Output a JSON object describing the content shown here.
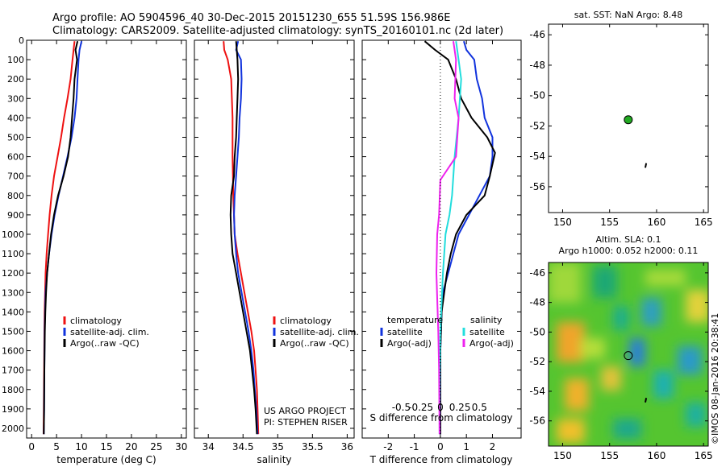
{
  "header": {
    "line1": "Argo profile: AO 5904596_40 30-Dec-2015 20151230_655 51.59S 156.986E",
    "line2": "Climatology: CARS2009. Satellite-adjusted climatology: synTS_20160101.nc (2d later)"
  },
  "colors": {
    "climatology": "#ee1111",
    "satellite": "#1133dd",
    "argo": "#000000",
    "satellite_sal": "#22dddd",
    "argo_sal": "#ee22ee",
    "marker": "#22aa22"
  },
  "chart_data": [
    {
      "type": "line",
      "panel": "temperature",
      "xlabel": "temperature (deg C)",
      "ylabel": "",
      "xlim": [
        -1,
        31
      ],
      "ylim": [
        2050,
        0
      ],
      "x_ticks": [
        0,
        5,
        10,
        15,
        20,
        25,
        30
      ],
      "y_ticks": [
        0,
        100,
        200,
        300,
        400,
        500,
        600,
        700,
        800,
        900,
        1000,
        1100,
        1200,
        1300,
        1400,
        1500,
        1600,
        1700,
        1800,
        1900,
        2000
      ],
      "legend": [
        "climatology",
        "satellite-adj. clim.",
        "Argo(..raw -QC)"
      ],
      "series": [
        {
          "name": "climatology",
          "color": "#ee1111",
          "points": [
            [
              8.6,
              5
            ],
            [
              8.2,
              100
            ],
            [
              7.8,
              200
            ],
            [
              7.2,
              300
            ],
            [
              6.5,
              400
            ],
            [
              5.9,
              500
            ],
            [
              5.2,
              600
            ],
            [
              4.5,
              700
            ],
            [
              4.0,
              800
            ],
            [
              3.6,
              900
            ],
            [
              3.3,
              1000
            ],
            [
              3.0,
              1100
            ],
            [
              2.8,
              1200
            ],
            [
              2.7,
              1300
            ],
            [
              2.6,
              1400
            ],
            [
              2.55,
              1500
            ],
            [
              2.5,
              1700
            ],
            [
              2.45,
              1900
            ],
            [
              2.4,
              2030
            ]
          ]
        },
        {
          "name": "satellite-adj. clim.",
          "color": "#1133dd",
          "points": [
            [
              10.0,
              5
            ],
            [
              9.6,
              50
            ],
            [
              9.4,
              100
            ],
            [
              9.2,
              200
            ],
            [
              9.0,
              300
            ],
            [
              8.6,
              400
            ],
            [
              8.0,
              500
            ],
            [
              7.2,
              600
            ],
            [
              6.3,
              700
            ],
            [
              5.4,
              800
            ],
            [
              4.6,
              900
            ],
            [
              4.0,
              1000
            ],
            [
              3.5,
              1100
            ],
            [
              3.1,
              1200
            ],
            [
              2.8,
              1300
            ],
            [
              2.7,
              1400
            ],
            [
              2.6,
              1500
            ],
            [
              2.55,
              1700
            ],
            [
              2.5,
              1900
            ],
            [
              2.45,
              2030
            ]
          ]
        },
        {
          "name": "Argo(..raw -QC)",
          "color": "#000000",
          "points": [
            [
              9.2,
              5
            ],
            [
              8.8,
              50
            ],
            [
              9.1,
              100
            ],
            [
              8.6,
              200
            ],
            [
              8.4,
              300
            ],
            [
              8.1,
              400
            ],
            [
              7.8,
              500
            ],
            [
              7.3,
              600
            ],
            [
              6.4,
              700
            ],
            [
              5.3,
              800
            ],
            [
              4.5,
              900
            ],
            [
              3.9,
              1000
            ],
            [
              3.5,
              1100
            ],
            [
              3.1,
              1200
            ],
            [
              2.9,
              1300
            ],
            [
              2.75,
              1400
            ],
            [
              2.65,
              1500
            ],
            [
              2.55,
              1700
            ],
            [
              2.5,
              1900
            ],
            [
              2.45,
              2030
            ]
          ]
        }
      ]
    },
    {
      "type": "line",
      "panel": "salinity",
      "xlabel": "salinity",
      "ylabel": "",
      "xlim": [
        33.8,
        36.1
      ],
      "ylim": [
        2050,
        0
      ],
      "x_ticks": [
        34,
        34.5,
        35,
        35.5,
        36
      ],
      "legend": [
        "climatology",
        "satellite-adj. clim.",
        "Argo(..raw -QC)"
      ],
      "annotation": [
        "US ARGO PROJECT",
        "PI: STEPHEN RISER"
      ],
      "series": [
        {
          "name": "climatology",
          "color": "#ee1111",
          "points": [
            [
              34.22,
              5
            ],
            [
              34.23,
              50
            ],
            [
              34.28,
              100
            ],
            [
              34.33,
              200
            ],
            [
              34.35,
              400
            ],
            [
              34.35,
              600
            ],
            [
              34.36,
              800
            ],
            [
              34.38,
              1000
            ],
            [
              34.42,
              1100
            ],
            [
              34.47,
              1200
            ],
            [
              34.52,
              1300
            ],
            [
              34.57,
              1400
            ],
            [
              34.62,
              1500
            ],
            [
              34.66,
              1600
            ],
            [
              34.68,
              1700
            ],
            [
              34.7,
              1800
            ],
            [
              34.71,
              1900
            ],
            [
              34.72,
              2030
            ]
          ]
        },
        {
          "name": "satellite-adj. clim.",
          "color": "#1133dd",
          "points": [
            [
              34.43,
              5
            ],
            [
              34.4,
              50
            ],
            [
              34.47,
              100
            ],
            [
              34.48,
              200
            ],
            [
              34.47,
              300
            ],
            [
              34.45,
              400
            ],
            [
              34.44,
              500
            ],
            [
              34.42,
              600
            ],
            [
              34.4,
              700
            ],
            [
              34.38,
              800
            ],
            [
              34.37,
              900
            ],
            [
              34.38,
              1000
            ],
            [
              34.4,
              1100
            ],
            [
              34.43,
              1200
            ],
            [
              34.48,
              1300
            ],
            [
              34.53,
              1400
            ],
            [
              34.58,
              1500
            ],
            [
              34.62,
              1600
            ],
            [
              34.65,
              1700
            ],
            [
              34.67,
              1800
            ],
            [
              34.69,
              1900
            ],
            [
              34.71,
              2030
            ]
          ]
        },
        {
          "name": "Argo(..raw -QC)",
          "color": "#000000",
          "points": [
            [
              34.4,
              5
            ],
            [
              34.42,
              100
            ],
            [
              34.43,
              200
            ],
            [
              34.42,
              300
            ],
            [
              34.41,
              400
            ],
            [
              34.4,
              500
            ],
            [
              34.38,
              600
            ],
            [
              34.37,
              700
            ],
            [
              34.33,
              800
            ],
            [
              34.32,
              900
            ],
            [
              34.33,
              1000
            ],
            [
              34.35,
              1100
            ],
            [
              34.4,
              1200
            ],
            [
              34.45,
              1300
            ],
            [
              34.5,
              1400
            ],
            [
              34.55,
              1500
            ],
            [
              34.6,
              1600
            ],
            [
              34.63,
              1700
            ],
            [
              34.66,
              1800
            ],
            [
              34.68,
              1900
            ],
            [
              34.7,
              2030
            ]
          ]
        }
      ]
    },
    {
      "type": "line",
      "panel": "difference",
      "xlabel": "T difference from climatology",
      "xlabel2": "S difference from climatology",
      "xlim": [
        -3,
        3.1
      ],
      "ylim": [
        2050,
        0
      ],
      "x_ticks": [
        -2,
        -1,
        0,
        1,
        2
      ],
      "x_tick_labels": [
        "-2",
        "-1",
        "0",
        "1",
        "2"
      ],
      "x2_ticks": [
        -1.5,
        -0.75,
        0,
        0.75,
        1.5
      ],
      "x2_tick_labels": [
        "-0.5",
        "-0.25",
        "0",
        "0.25",
        "0.5"
      ],
      "legend_titles": [
        "temperature",
        "salinity"
      ],
      "legend": [
        "satellite",
        "Argo(-adj)",
        "satellite",
        "Argo(-adj)"
      ],
      "series": [
        {
          "name": "temperature satellite",
          "color": "#1133dd",
          "points": [
            [
              0.9,
              5
            ],
            [
              1.0,
              50
            ],
            [
              1.3,
              100
            ],
            [
              1.4,
              200
            ],
            [
              1.6,
              300
            ],
            [
              1.7,
              400
            ],
            [
              2.0,
              500
            ],
            [
              2.0,
              600
            ],
            [
              1.9,
              700
            ],
            [
              1.5,
              800
            ],
            [
              1.1,
              900
            ],
            [
              0.7,
              1000
            ],
            [
              0.5,
              1100
            ],
            [
              0.3,
              1200
            ],
            [
              0.1,
              1300
            ],
            [
              0.05,
              1400
            ],
            [
              0.0,
              1600
            ],
            [
              0.0,
              1800
            ],
            [
              0.0,
              2030
            ]
          ]
        },
        {
          "name": "temperature Argo(-adj)",
          "color": "#000000",
          "points": [
            [
              -0.6,
              5
            ],
            [
              -0.2,
              50
            ],
            [
              0.3,
              100
            ],
            [
              0.6,
              200
            ],
            [
              0.8,
              300
            ],
            [
              1.2,
              400
            ],
            [
              1.8,
              500
            ],
            [
              2.1,
              580
            ],
            [
              1.9,
              700
            ],
            [
              1.7,
              800
            ],
            [
              1.0,
              900
            ],
            [
              0.6,
              1000
            ],
            [
              0.4,
              1100
            ],
            [
              0.25,
              1200
            ],
            [
              0.15,
              1300
            ],
            [
              0.05,
              1400
            ],
            [
              0.0,
              1600
            ],
            [
              0.0,
              1800
            ],
            [
              0.0,
              2030
            ]
          ]
        },
        {
          "name": "salinity satellite",
          "color": "#22dddd",
          "points": [
            [
              0.6,
              5
            ],
            [
              0.7,
              100
            ],
            [
              0.8,
              200
            ],
            [
              0.75,
              300
            ],
            [
              0.7,
              400
            ],
            [
              0.55,
              600
            ],
            [
              0.45,
              800
            ],
            [
              0.35,
              900
            ],
            [
              0.2,
              1000
            ],
            [
              0.1,
              1200
            ],
            [
              0.0,
              1500
            ],
            [
              -0.02,
              1700
            ],
            [
              -0.03,
              2030
            ]
          ]
        },
        {
          "name": "salinity Argo(-adj)",
          "color": "#ee22ee",
          "points": [
            [
              0.5,
              5
            ],
            [
              0.6,
              100
            ],
            [
              0.55,
              300
            ],
            [
              0.7,
              400
            ],
            [
              0.6,
              600
            ],
            [
              0.0,
              720
            ],
            [
              -0.05,
              900
            ],
            [
              -0.12,
              1000
            ],
            [
              -0.15,
              1200
            ],
            [
              -0.08,
              1500
            ],
            [
              -0.05,
              1700
            ],
            [
              -0.03,
              2030
            ]
          ]
        }
      ]
    },
    {
      "type": "scatter",
      "panel": "sst_map",
      "title": "sat. SST: NaN Argo: 8.48",
      "xlim": [
        148.5,
        165.5
      ],
      "ylim": [
        -57.7,
        -45.3
      ],
      "x_ticks": [
        150,
        155,
        160,
        165
      ],
      "y_ticks": [
        -46,
        -48,
        -50,
        -52,
        -54,
        -56
      ],
      "points": [
        {
          "x": 156.986,
          "y": -51.59
        }
      ]
    },
    {
      "type": "heatmap",
      "panel": "sla_map",
      "title": "Altim. SLA: 0.1",
      "subtitle": "Argo h1000: 0.052 h2000: 0.11",
      "xlim": [
        148.5,
        165.5
      ],
      "ylim": [
        -57.7,
        -45.3
      ],
      "x_ticks": [
        150,
        155,
        160,
        165
      ],
      "y_ticks": [
        -46,
        -48,
        -50,
        -52,
        -54,
        -56
      ],
      "points": [
        {
          "x": 156.986,
          "y": -51.59
        }
      ],
      "watermark": "©IMOS 08-Jan-2016 20:38:41"
    }
  ]
}
